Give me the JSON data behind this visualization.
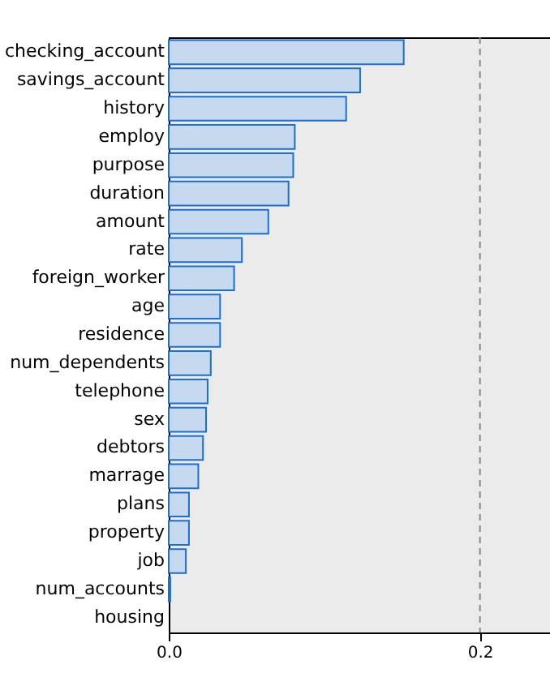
{
  "chart_data": {
    "type": "bar",
    "orientation": "horizontal",
    "categories": [
      "checking_account",
      "savings_account",
      "history",
      "employ",
      "purpose",
      "duration",
      "amount",
      "rate",
      "foreign_worker",
      "age",
      "residence",
      "num_dependents",
      "telephone",
      "sex",
      "debtors",
      "marrage",
      "plans",
      "property",
      "job",
      "num_accounts",
      "housing"
    ],
    "series": [
      {
        "color": "#c6d9ee",
        "values": [
          0.151,
          0.123,
          0.114,
          0.081,
          0.08,
          0.077,
          0.064,
          0.047,
          0.042,
          0.033,
          0.033,
          0.027,
          0.025,
          0.024,
          0.022,
          0.019,
          0.013,
          0.013,
          0.011,
          0.001,
          0.0
        ]
      }
    ],
    "xlim": [
      0,
      0.245
    ],
    "xticks": [
      {
        "value": 0,
        "label": "0.0"
      },
      {
        "value": 0.2,
        "label": "0.2"
      }
    ],
    "ref_lines": [
      {
        "axis": "x",
        "value": 0.2,
        "line_style": "dashed",
        "color": "#888888"
      }
    ],
    "grid": false
  }
}
